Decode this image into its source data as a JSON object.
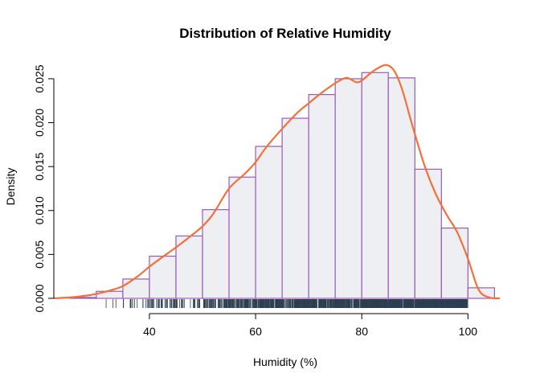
{
  "chart_data": {
    "type": "histogram",
    "title": "Distribution of Relative Humidity",
    "xlabel": "Humidity (%)",
    "ylabel": "Density",
    "xlim": [
      22,
      106
    ],
    "ylim": [
      0,
      0.026
    ],
    "x_ticks": [
      40,
      60,
      80,
      100
    ],
    "y_ticks": [
      0.0,
      0.005,
      0.01,
      0.015,
      0.02,
      0.025
    ],
    "y_tick_labels": [
      "0.000",
      "0.005",
      "0.010",
      "0.015",
      "0.020",
      "0.025"
    ],
    "bin_edges": [
      25,
      30,
      35,
      40,
      45,
      50,
      55,
      60,
      65,
      70,
      75,
      80,
      85,
      90,
      95,
      100,
      105
    ],
    "values": [
      0.0001,
      0.0008,
      0.0022,
      0.0048,
      0.0071,
      0.0101,
      0.0138,
      0.0173,
      0.0205,
      0.0232,
      0.025,
      0.0257,
      0.0251,
      0.0147,
      0.008,
      0.0012
    ],
    "density_curve": {
      "x": [
        22,
        25,
        28,
        30,
        32,
        35,
        38,
        40,
        42,
        45,
        48,
        50,
        52,
        55,
        58,
        60,
        62,
        65,
        68,
        70,
        72,
        75,
        77,
        78,
        79,
        80,
        82,
        84,
        85,
        86,
        87,
        88,
        89,
        90,
        92,
        94,
        96,
        98,
        100,
        102,
        104,
        106
      ],
      "y": [
        0.0,
        0.0001,
        0.0003,
        0.0005,
        0.0008,
        0.0014,
        0.0026,
        0.0036,
        0.0045,
        0.0058,
        0.0072,
        0.0082,
        0.0096,
        0.0125,
        0.0142,
        0.0155,
        0.0172,
        0.0193,
        0.0212,
        0.0222,
        0.0232,
        0.0245,
        0.0251,
        0.0249,
        0.0246,
        0.0248,
        0.0258,
        0.0265,
        0.0265,
        0.026,
        0.0248,
        0.023,
        0.0208,
        0.0187,
        0.0148,
        0.0118,
        0.0095,
        0.0075,
        0.0045,
        0.001,
        0.0001,
        0.0
      ],
      "color": "#f4703a"
    },
    "rug_range": [
      25,
      100
    ],
    "colors": {
      "bar_fill": "#edeff2",
      "bar_stroke": "#9b59b6",
      "rug": "#2c3e50",
      "axis": "#000000"
    }
  }
}
